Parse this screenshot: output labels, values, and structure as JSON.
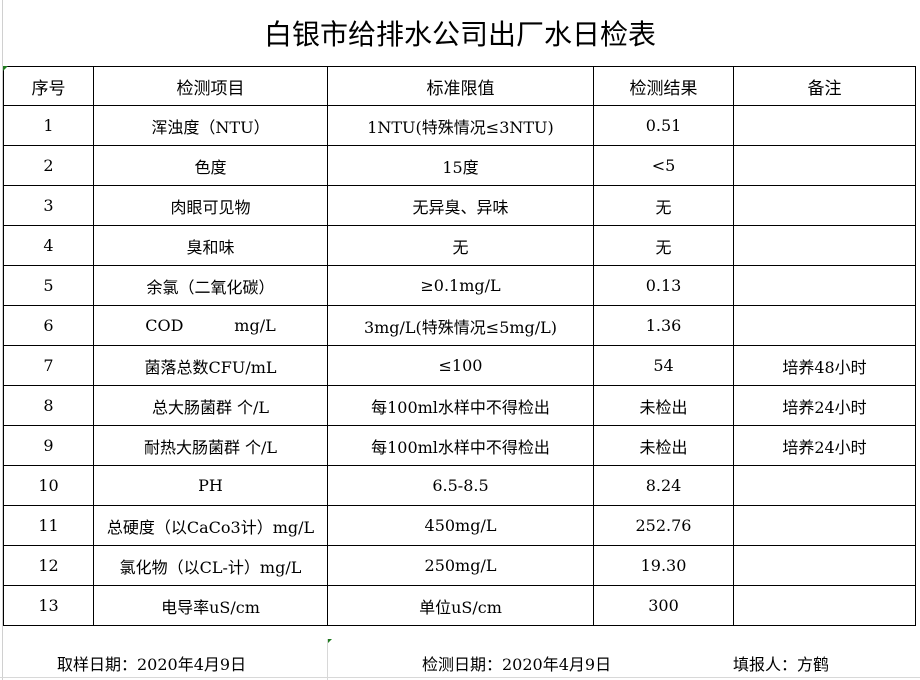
{
  "title": "白银市给排水公司出厂水日检表",
  "headers": [
    "序号",
    "检测项目",
    "标准限值",
    "检测结果",
    "备注"
  ],
  "rows": [
    [
      "1",
      "浑浊度（NTU）",
      "1NTU(特殊情况≤3NTU)",
      "0.51",
      ""
    ],
    [
      "2",
      "色度",
      "15度",
      "<5",
      ""
    ],
    [
      "3",
      "肉眼可见物",
      "无异臭、异味",
      "无",
      ""
    ],
    [
      "4",
      "臭和味",
      "无",
      "无",
      ""
    ],
    [
      "5",
      "余氯（二氧化碳）",
      "≥0.1mg/L",
      "0.13",
      ""
    ],
    [
      "6",
      "COD          mg/L",
      "3mg/L(特殊情况≤5mg/L)",
      "1.36",
      ""
    ],
    [
      "7",
      "菌落总数CFU/mL",
      "≤100",
      "54",
      "培养48小时"
    ],
    [
      "8",
      "总大肠菌群 个/L",
      "每100ml水样中不得检出",
      "未检出",
      "培养24小时"
    ],
    [
      "9",
      "耐热大肠菌群 个/L",
      "每100ml水样中不得检出",
      "未检出",
      "培养24小时"
    ],
    [
      "10",
      "PH",
      "6.5-8.5",
      "8.24",
      ""
    ],
    [
      "11",
      "总硬度（以CaCo3计）mg/L",
      "450mg/L",
      "252.76",
      ""
    ],
    [
      "12",
      "氯化物（以CL-计）mg/L",
      "250mg/L",
      "19.30",
      ""
    ],
    [
      "13",
      "电导率uS/cm",
      "单位uS/cm",
      "300",
      ""
    ]
  ],
  "footer": {
    "sampling_date": "取样日期：2020年4月9日",
    "testing_date": "检测日期：2020年4月9日",
    "reporter": "填报人：方鹤"
  }
}
